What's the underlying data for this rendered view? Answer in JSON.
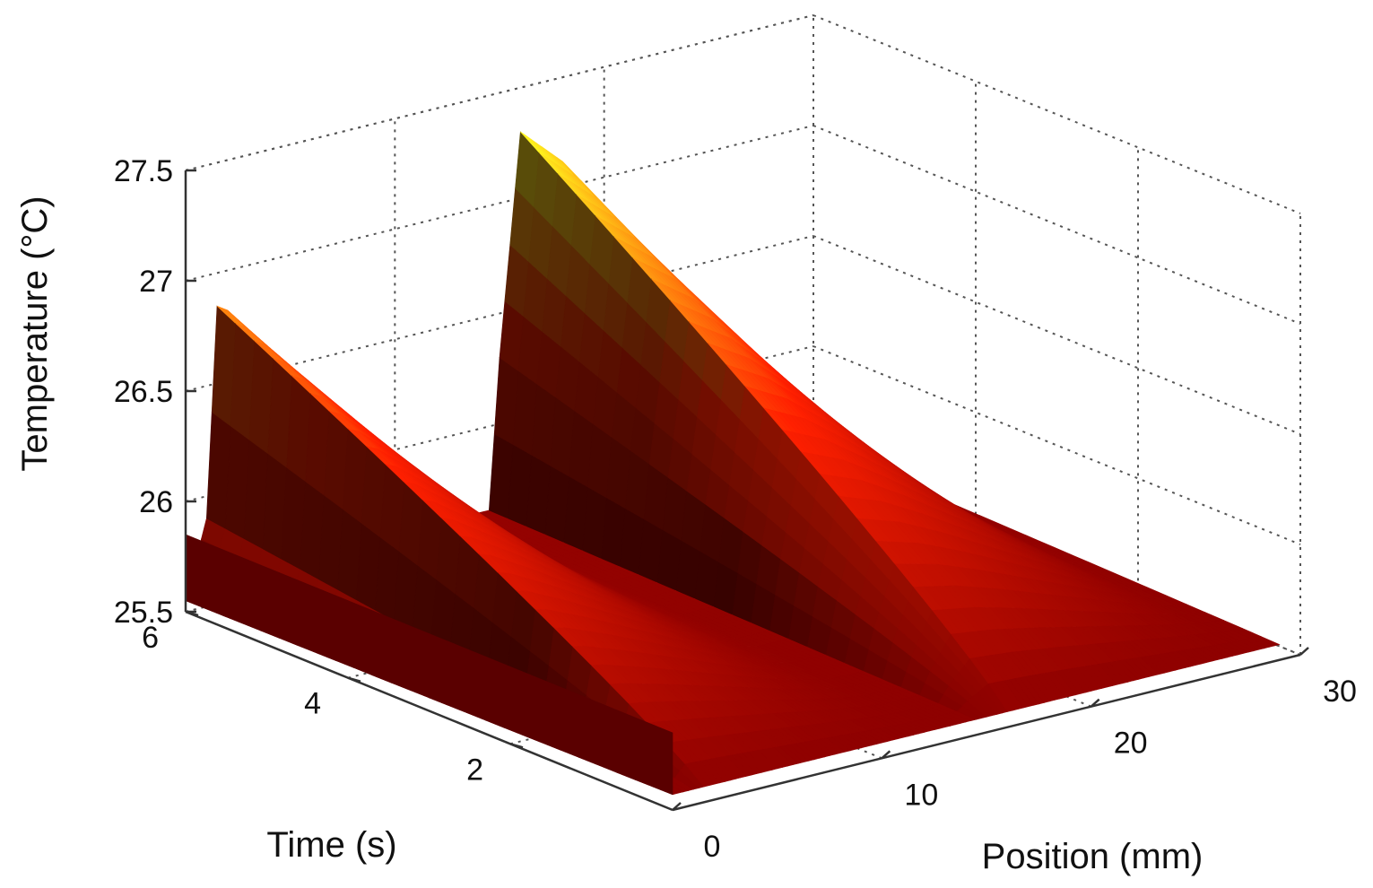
{
  "chart_data": {
    "type": "surface",
    "title": "",
    "xlabel": "Position (mm)",
    "ylabel": "Time (s)",
    "zlabel": "Temperature (°C)",
    "xlim": [
      0,
      30
    ],
    "ylim": [
      0,
      6
    ],
    "zlim": [
      25.5,
      27.5
    ],
    "xticks": [
      "0",
      "10",
      "20",
      "30"
    ],
    "yticks": [
      "2",
      "4",
      "6"
    ],
    "zticks": [
      "25.5",
      "26",
      "26.5",
      "27",
      "27.5"
    ],
    "grid": true,
    "colormap": "autumn-shaded (dark red to yellow)",
    "colors": {
      "low": "#8b0000",
      "mid": "#ff2000",
      "high": "#ffff20"
    },
    "surface": {
      "description": "Two ridges; each heats quickly over ~0.6 mm then cools linearly with position",
      "x": [
        0,
        1.0,
        1.5,
        2,
        4,
        6,
        8,
        10,
        12,
        13,
        14.5,
        15,
        16,
        18,
        20,
        22,
        24,
        26,
        28,
        29
      ],
      "t": [
        0,
        0.5,
        1,
        1.5,
        2,
        2.5,
        3,
        3.5,
        4,
        4.5,
        5,
        5.5,
        6
      ],
      "z_at_t6": [
        25.55,
        25.9,
        26.85,
        26.82,
        26.6,
        26.36,
        26.12,
        25.88,
        25.68,
        25.62,
        25.62,
        26.3,
        27.3,
        27.12,
        26.85,
        26.55,
        26.25,
        25.95,
        25.68,
        25.62
      ],
      "z_at_t0": [
        25.55,
        25.55,
        25.57,
        25.57,
        25.57,
        25.57,
        25.57,
        25.57,
        25.57,
        25.57,
        25.57,
        25.58,
        25.6,
        25.6,
        25.6,
        25.6,
        25.6,
        25.6,
        25.6,
        25.6
      ]
    }
  }
}
